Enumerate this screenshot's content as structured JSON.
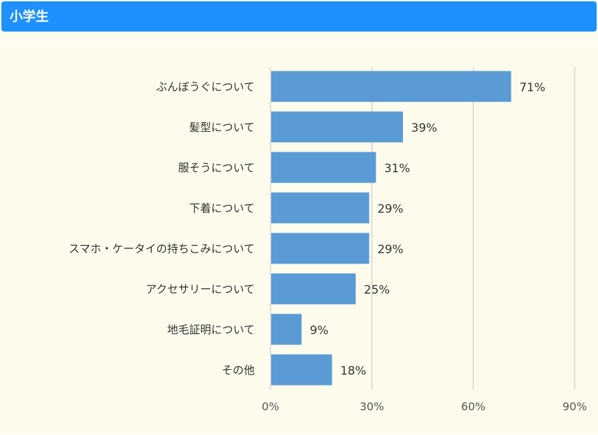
{
  "header": {
    "title": "小学生"
  },
  "colors": {
    "header": "#1e90ff",
    "bar": "#5b9bd5",
    "grid": "#d3d3d3",
    "background": "#fdfcec"
  },
  "chart_data": {
    "type": "bar",
    "orientation": "horizontal",
    "categories": [
      "ぶんぼうぐについて",
      "髪型について",
      "服そうについて",
      "下着について",
      "スマホ・ケータイの持ちこみについて",
      "アクセサリーについて",
      "地毛証明について",
      "その他"
    ],
    "values": [
      71,
      39,
      31,
      29,
      29,
      25,
      9,
      18
    ],
    "value_labels": [
      "71%",
      "39%",
      "31%",
      "29%",
      "29%",
      "25%",
      "9%",
      "18%"
    ],
    "xlim": [
      0,
      90
    ],
    "x_ticks": [
      "0%",
      "30%",
      "60%",
      "90%"
    ],
    "grid": true,
    "legend": "none"
  }
}
